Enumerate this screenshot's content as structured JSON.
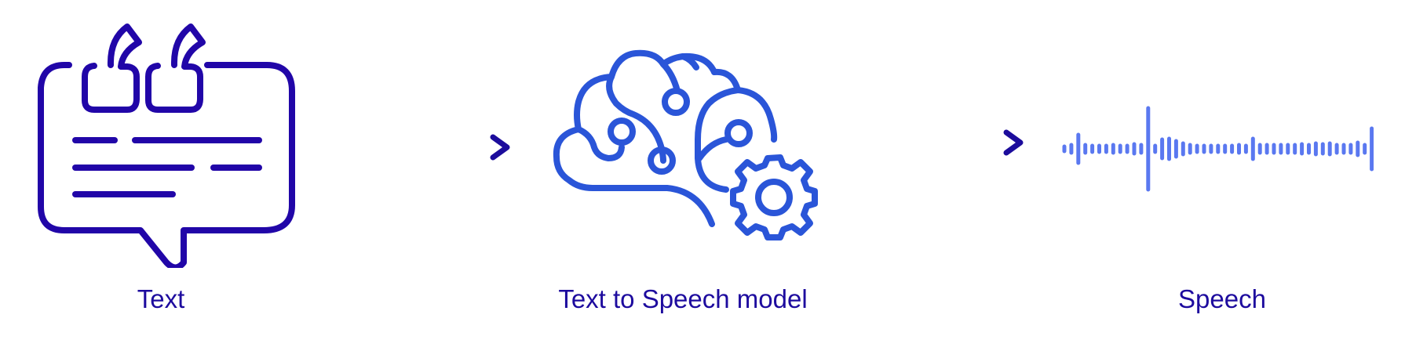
{
  "colors": {
    "text_icon": "#2106a8",
    "brain_icon": "#2a55d8",
    "wave_icon": "#5a78f0",
    "arrow_start": "#4f74ee",
    "arrow_end": "#1c0c9c",
    "label": "#1d0b9e"
  },
  "steps": [
    {
      "label": "Text",
      "icon": "speech-bubble-quote-icon"
    },
    {
      "label": "Text to Speech model",
      "icon": "brain-gear-icon"
    },
    {
      "label": "Speech",
      "icon": "sound-wave-icon"
    }
  ],
  "connectors": [
    {
      "icon": "arrow-right-icon"
    },
    {
      "icon": "arrow-right-icon"
    }
  ]
}
